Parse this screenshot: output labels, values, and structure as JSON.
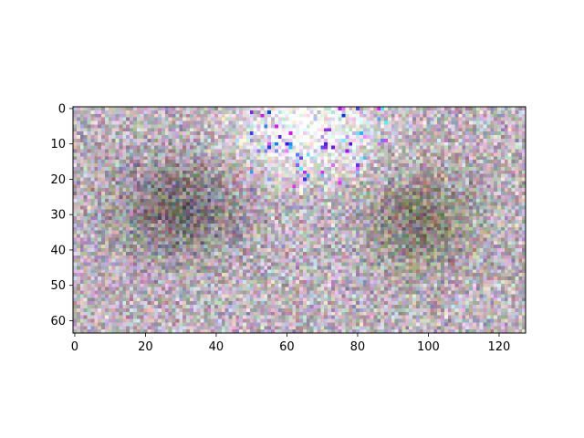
{
  "chart_data": {
    "type": "heatmap",
    "title": "",
    "xlabel": "",
    "ylabel": "",
    "image_shape": [
      64,
      128
    ],
    "xlim": [
      -0.5,
      127.5
    ],
    "ylim": [
      63.5,
      -0.5
    ],
    "x_ticks": [
      0,
      20,
      40,
      60,
      80,
      100,
      120
    ],
    "y_ticks": [
      0,
      10,
      20,
      30,
      40,
      50,
      60
    ],
    "x_tick_labels": [
      "0",
      "20",
      "40",
      "60",
      "80",
      "100",
      "120"
    ],
    "y_tick_labels": [
      "0",
      "10",
      "20",
      "30",
      "40",
      "50",
      "60"
    ],
    "grid": false,
    "legend": "none",
    "colorbar": false,
    "content": "noisy low-resolution RGB image: grey-pink noise background, bright white blob near top centre, darker olive-brown regions on left and right"
  }
}
